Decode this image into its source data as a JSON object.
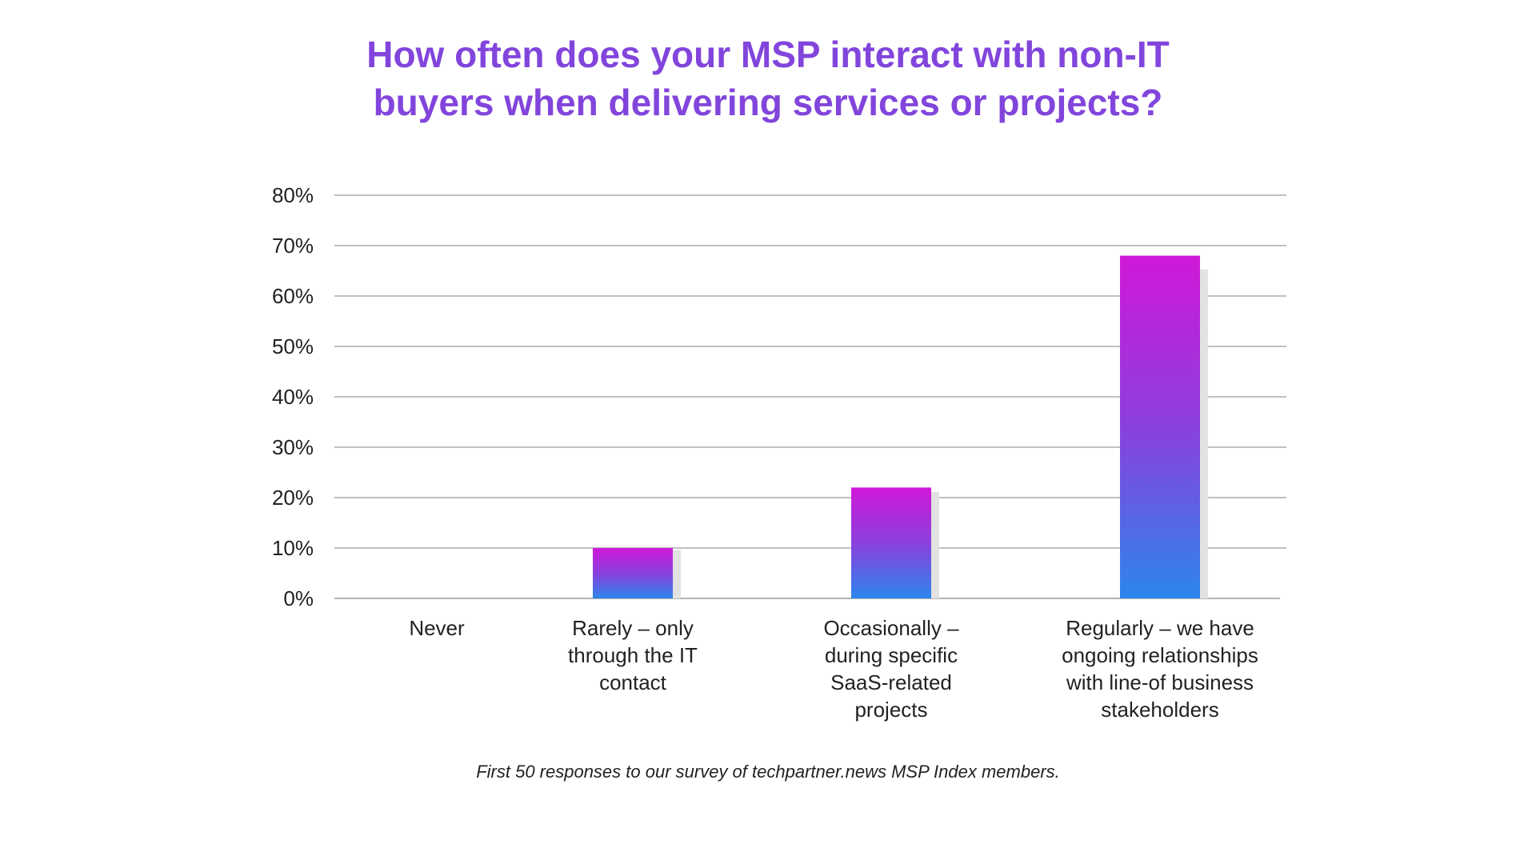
{
  "title": {
    "line1": "How often does your MSP interact with non-IT",
    "line2": "buyers when delivering services or projects?"
  },
  "caption": "First 50 responses to our survey of techpartner.news MSP Index members.",
  "colors": {
    "title": "#8245dc",
    "bar_top": "#d018d8",
    "bar_mid": "#8a40dc",
    "bar_bottom": "#2c86ec",
    "bar_shadow": "#e2e2e2",
    "grid": "#9a9a9a",
    "text": "#222222"
  },
  "chart_data": {
    "type": "bar",
    "categories": [
      [
        "Never"
      ],
      [
        "Rarely – only",
        "through the IT",
        "contact"
      ],
      [
        "Occasionally –",
        "during specific",
        "SaaS-related",
        "projects"
      ],
      [
        "Regularly – we have",
        "ongoing relationships",
        "with line-of business",
        "stakeholders"
      ]
    ],
    "values": [
      0,
      10,
      22,
      68
    ],
    "ylim": [
      0,
      80
    ],
    "yticks": [
      "0%",
      "10%",
      "20%",
      "30%",
      "40%",
      "50%",
      "60%",
      "70%",
      "80%"
    ],
    "ytick_values": [
      0,
      10,
      20,
      30,
      40,
      50,
      60,
      70,
      80
    ],
    "grid": true,
    "legend": false,
    "gradient": true
  }
}
